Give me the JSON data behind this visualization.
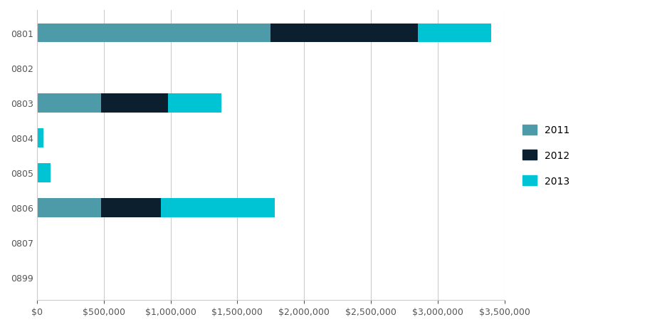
{
  "categories": [
    "0801",
    "0802",
    "0803",
    "0804",
    "0805",
    "0806",
    "0807",
    "0899"
  ],
  "series": {
    "2011": [
      1750000,
      0,
      480000,
      0,
      0,
      480000,
      8000,
      0
    ],
    "2012": [
      1100000,
      0,
      500000,
      0,
      0,
      450000,
      0,
      0
    ],
    "2013": [
      550000,
      0,
      400000,
      50000,
      100000,
      850000,
      0,
      0
    ]
  },
  "colors": {
    "2011": "#4d9aa8",
    "2012": "#0c1f2e",
    "2013": "#00c4d4"
  },
  "legend_labels": [
    "2011",
    "2012",
    "2013"
  ],
  "xlim": [
    0,
    3500000
  ],
  "xtick_values": [
    0,
    500000,
    1000000,
    1500000,
    2000000,
    2500000,
    3000000,
    3500000
  ],
  "bar_height": 0.55,
  "background_color": "#ffffff",
  "grid_color": "#cccccc",
  "label_color": "#555555",
  "tick_fontsize": 9,
  "legend_fontsize": 10
}
